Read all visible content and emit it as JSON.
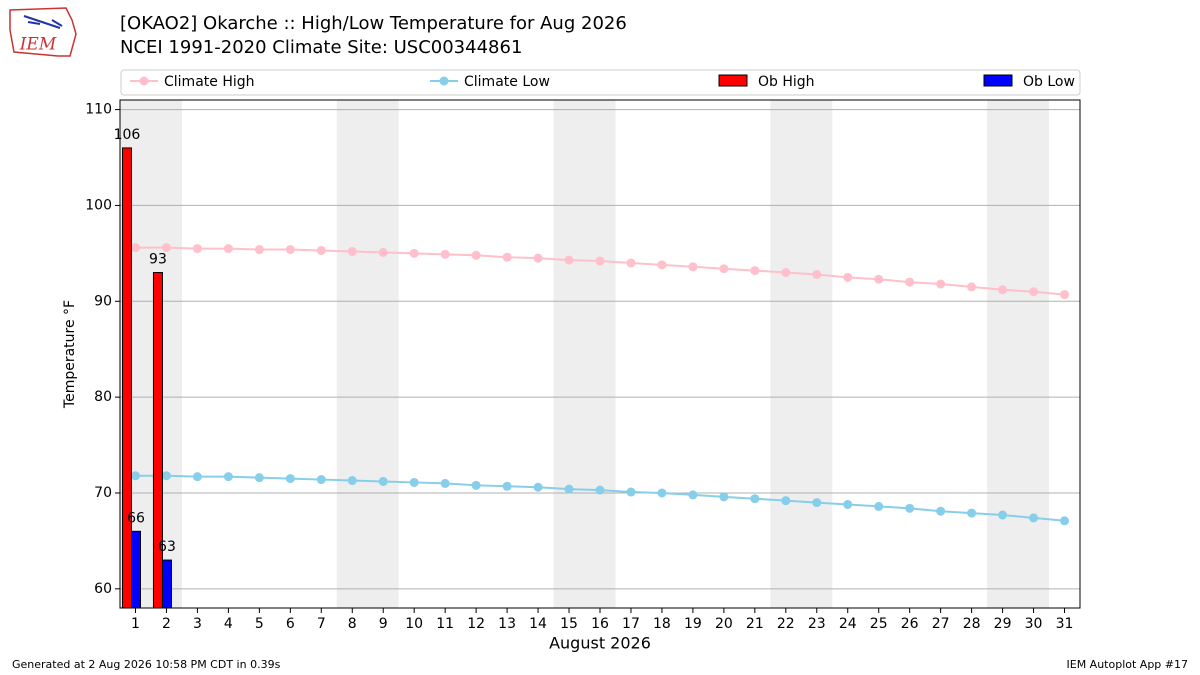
{
  "chart_data": {
    "type": "bar-line",
    "title": "[OKAO2] Okarche :: High/Low Temperature for Aug 2026",
    "subtitle": "NCEI 1991-2020 Climate Site: USC00344861",
    "x_label": "August 2026",
    "y_label": "Temperature °F",
    "x": [
      1,
      2,
      3,
      4,
      5,
      6,
      7,
      8,
      9,
      10,
      11,
      12,
      13,
      14,
      15,
      16,
      17,
      18,
      19,
      20,
      21,
      22,
      23,
      24,
      25,
      26,
      27,
      28,
      29,
      30,
      31
    ],
    "xlim": [
      0.5,
      31.5
    ],
    "xticks": [
      1,
      2,
      3,
      4,
      5,
      6,
      7,
      8,
      9,
      10,
      11,
      12,
      13,
      14,
      15,
      16,
      17,
      18,
      19,
      20,
      21,
      22,
      23,
      24,
      25,
      26,
      27,
      28,
      29,
      30,
      31
    ],
    "ylim": [
      58,
      111
    ],
    "yticks": [
      60,
      70,
      80,
      90,
      100,
      110
    ],
    "grid": true,
    "shaded_days": [
      1,
      8,
      15,
      22,
      29
    ],
    "series": [
      {
        "name": "Climate High",
        "kind": "line",
        "color": "#ffc0cb",
        "values": [
          95.6,
          95.6,
          95.5,
          95.5,
          95.4,
          95.4,
          95.3,
          95.2,
          95.1,
          95.0,
          94.9,
          94.8,
          94.6,
          94.5,
          94.3,
          94.2,
          94.0,
          93.8,
          93.6,
          93.4,
          93.2,
          93.0,
          92.8,
          92.5,
          92.3,
          92.0,
          91.8,
          91.5,
          91.2,
          91.0,
          90.7
        ]
      },
      {
        "name": "Climate Low",
        "kind": "line",
        "color": "#87ceeb",
        "values": [
          71.8,
          71.8,
          71.7,
          71.7,
          71.6,
          71.5,
          71.4,
          71.3,
          71.2,
          71.1,
          71.0,
          70.8,
          70.7,
          70.6,
          70.4,
          70.3,
          70.1,
          70.0,
          69.8,
          69.6,
          69.4,
          69.2,
          69.0,
          68.8,
          68.6,
          68.4,
          68.1,
          67.9,
          67.7,
          67.4,
          67.1
        ]
      },
      {
        "name": "Ob High",
        "kind": "bar",
        "color": "#ff0000",
        "values": [
          106,
          93,
          null,
          null,
          null,
          null,
          null,
          null,
          null,
          null,
          null,
          null,
          null,
          null,
          null,
          null,
          null,
          null,
          null,
          null,
          null,
          null,
          null,
          null,
          null,
          null,
          null,
          null,
          null,
          null,
          null
        ]
      },
      {
        "name": "Ob Low",
        "kind": "bar",
        "color": "#0000ff",
        "values": [
          66,
          63,
          null,
          null,
          null,
          null,
          null,
          null,
          null,
          null,
          null,
          null,
          null,
          null,
          null,
          null,
          null,
          null,
          null,
          null,
          null,
          null,
          null,
          null,
          null,
          null,
          null,
          null,
          null,
          null,
          null
        ]
      }
    ]
  },
  "logo": "IEM",
  "footer_left": "Generated at 2 Aug 2026 10:58 PM CDT in 0.39s",
  "footer_right": "IEM Autoplot App #17"
}
